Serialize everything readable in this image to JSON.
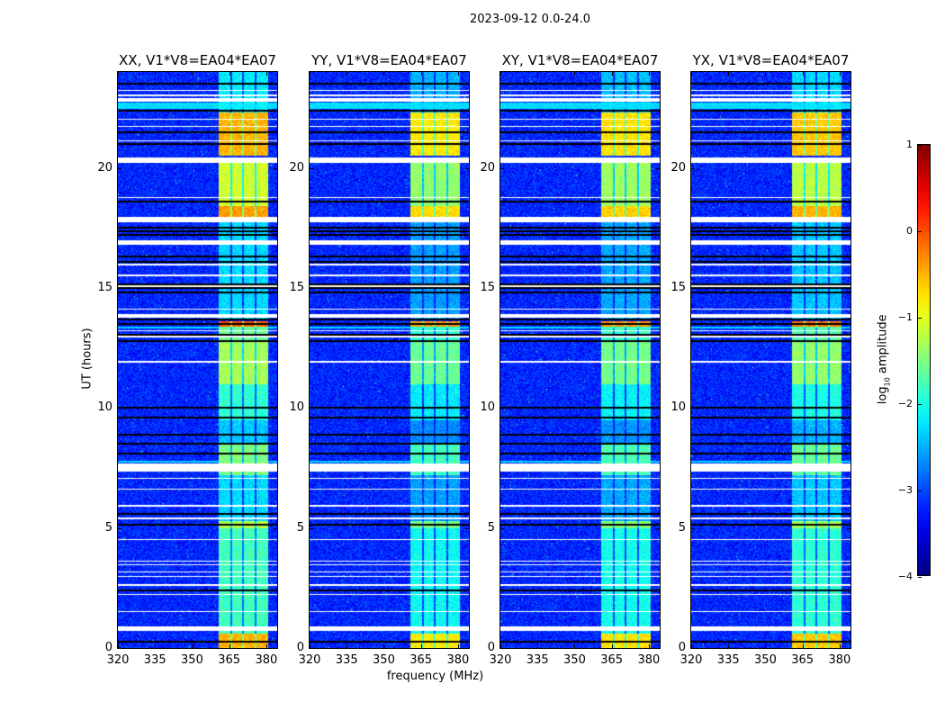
{
  "figure": {
    "title": "2023-09-12 0.0-24.0",
    "xlabel": "frequency (MHz)",
    "ylabel": "UT (hours)",
    "colorbar_label_prefix": "log",
    "colorbar_label_sub": "10",
    "colorbar_label_suffix": " amplitude"
  },
  "chart_data": {
    "type": "heatmap",
    "colormap": "jet",
    "panels": [
      {
        "title": "XX, V1*V8=EA04*EA07",
        "band_gain": 0.0
      },
      {
        "title": "YY, V1*V8=EA04*EA07",
        "band_gain": -0.3
      },
      {
        "title": "XY, V1*V8=EA04*EA07",
        "band_gain": -0.25
      },
      {
        "title": "YX, V1*V8=EA04*EA07",
        "band_gain": -0.1
      }
    ],
    "xlim": [
      320,
      384.4
    ],
    "ylim": [
      0,
      24
    ],
    "xticks": [
      320,
      335,
      350,
      365,
      380
    ],
    "xtick_labels": [
      "320",
      "335",
      "350",
      "365",
      "380"
    ],
    "yticks": [
      0,
      5,
      10,
      15,
      20
    ],
    "ytick_labels": [
      "0",
      "5",
      "10",
      "15",
      "20"
    ],
    "colorbar": {
      "range": [
        -4,
        1
      ],
      "ticks": [
        1,
        0,
        -1,
        -2,
        -3,
        -4
      ],
      "tick_labels": [
        "1",
        "0",
        "−1",
        "−2",
        "−3",
        "−4"
      ]
    },
    "background_log_amplitude": -3.2,
    "rfi_band_mhz": [
      360.7,
      380.4
    ],
    "rfi_subband_gaps_mhz": [
      365.6,
      370.5,
      375.4
    ],
    "rfi_segments": [
      {
        "hours": [
          0,
          0.6
        ],
        "log_amp": -0.5
      },
      {
        "hours": [
          0.6,
          5.0
        ],
        "log_amp": -1.8
      },
      {
        "hours": [
          5.0,
          5.3
        ],
        "log_amp": -1.2
      },
      {
        "hours": [
          5.3,
          7.2
        ],
        "log_amp": -2.3
      },
      {
        "hours": [
          7.2,
          8.5
        ],
        "log_amp": -1.5
      },
      {
        "hours": [
          8.5,
          9.5
        ],
        "log_amp": -2.4
      },
      {
        "hours": [
          9.5,
          11.0
        ],
        "log_amp": -1.9
      },
      {
        "hours": [
          11.0,
          12.8
        ],
        "log_amp": -1.3
      },
      {
        "hours": [
          12.8,
          13.4
        ],
        "log_amp": -1.6
      },
      {
        "hours": [
          13.4,
          13.6
        ],
        "log_amp": -0.1
      },
      {
        "hours": [
          13.7,
          17.9
        ],
        "log_amp": -2.3
      },
      {
        "hours": [
          17.9,
          18.4
        ],
        "log_amp": -0.4
      },
      {
        "hours": [
          18.4,
          20.2
        ],
        "log_amp": -1.1
      },
      {
        "hours": [
          20.5,
          22.3
        ],
        "log_amp": -0.5
      },
      {
        "hours": [
          22.3,
          24.0
        ],
        "log_amp": -2.2
      }
    ],
    "flagged_hours": [
      [
        23.2,
        23.25
      ],
      [
        23.0,
        23.05
      ],
      [
        22.75,
        22.92
      ],
      [
        22.0,
        22.05
      ],
      [
        21.7,
        21.75
      ],
      [
        21.1,
        21.15
      ],
      [
        20.2,
        20.45
      ],
      [
        18.75,
        18.8
      ],
      [
        17.75,
        17.95
      ],
      [
        16.8,
        17.0
      ],
      [
        15.95,
        16.0
      ],
      [
        15.5,
        15.55
      ],
      [
        15.05,
        15.1
      ],
      [
        14.1,
        14.15
      ],
      [
        13.75,
        13.9
      ],
      [
        13.2,
        13.25
      ],
      [
        12.95,
        13.0
      ],
      [
        11.9,
        11.95
      ],
      [
        7.35,
        7.7
      ],
      [
        7.05,
        7.1
      ],
      [
        6.6,
        6.65
      ],
      [
        5.9,
        5.95
      ],
      [
        5.35,
        5.45
      ],
      [
        4.5,
        4.55
      ],
      [
        3.6,
        3.65
      ],
      [
        3.45,
        3.5
      ],
      [
        3.15,
        3.2
      ],
      [
        2.95,
        3.0
      ],
      [
        2.6,
        2.65
      ],
      [
        2.2,
        2.25
      ],
      [
        1.5,
        1.55
      ],
      [
        0.7,
        0.9
      ]
    ],
    "zero_hours": [
      23.5,
      22.38,
      21.5,
      21.0,
      18.6,
      17.5,
      17.35,
      17.2,
      16.3,
      16.1,
      15.15,
      15.0,
      14.8,
      13.68,
      13.5,
      13.05,
      12.8,
      10.0,
      9.6,
      8.9,
      8.5,
      8.1,
      5.6,
      5.15,
      2.4,
      0.25
    ],
    "broadband_hours": [
      [
        22.45,
        22.72
      ],
      [
        13.3,
        13.4
      ],
      [
        7.72,
        7.8
      ]
    ]
  }
}
